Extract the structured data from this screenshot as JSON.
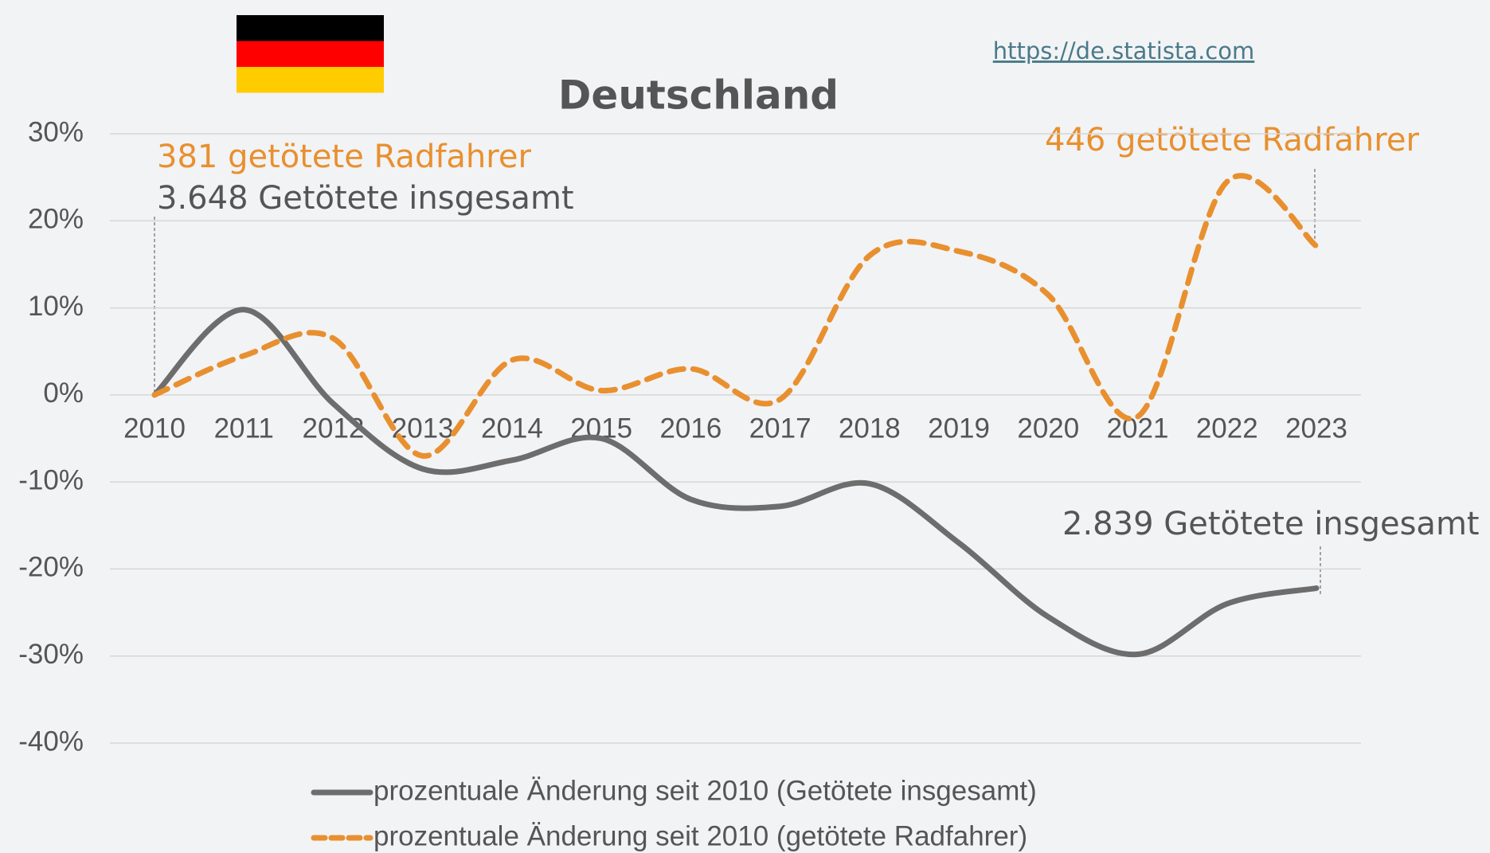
{
  "chart_data": {
    "type": "line",
    "title": "Deutschland",
    "source": "https://de.statista.com",
    "categories": [
      "2010",
      "2011",
      "2012",
      "2013",
      "2014",
      "2015",
      "2016",
      "2017",
      "2018",
      "2019",
      "2020",
      "2021",
      "2022",
      "2023"
    ],
    "series": [
      {
        "name": "prozentuale Änderung seit 2010 (Getötete insgesamt)",
        "color": "#6d6d6d",
        "dashed": false,
        "values": [
          0,
          9.8,
          -1,
          -8.5,
          -7.5,
          -5,
          -12,
          -12.8,
          -10.2,
          -17,
          -25.5,
          -29.8,
          -24,
          -22.2
        ]
      },
      {
        "name": "prozentuale Änderung seit 2010 (getötete Radfahrer)",
        "color": "#e8902f",
        "dashed": true,
        "values": [
          0,
          4.5,
          6.5,
          -7,
          4,
          0.5,
          3,
          -0.5,
          16,
          16.5,
          11.5,
          -2.5,
          24.5,
          17.1
        ]
      }
    ],
    "annotations": [
      "381 getötete Radfahrer",
      "3.648 Getötete insgesamt",
      "446 getötete Radfahrer",
      "2.839 Getötete insgesamt"
    ],
    "ylim": [
      -40,
      30
    ],
    "yticks": [
      {
        "value": -40,
        "label": "-40%"
      },
      {
        "value": -30,
        "label": "-30%"
      },
      {
        "value": -20,
        "label": "-20%"
      },
      {
        "value": -10,
        "label": "-10%"
      },
      {
        "value": 0,
        "label": "0%"
      },
      {
        "value": 10,
        "label": "10%"
      },
      {
        "value": 20,
        "label": "20%"
      },
      {
        "value": 30,
        "label": "30%"
      }
    ],
    "grid": true
  }
}
